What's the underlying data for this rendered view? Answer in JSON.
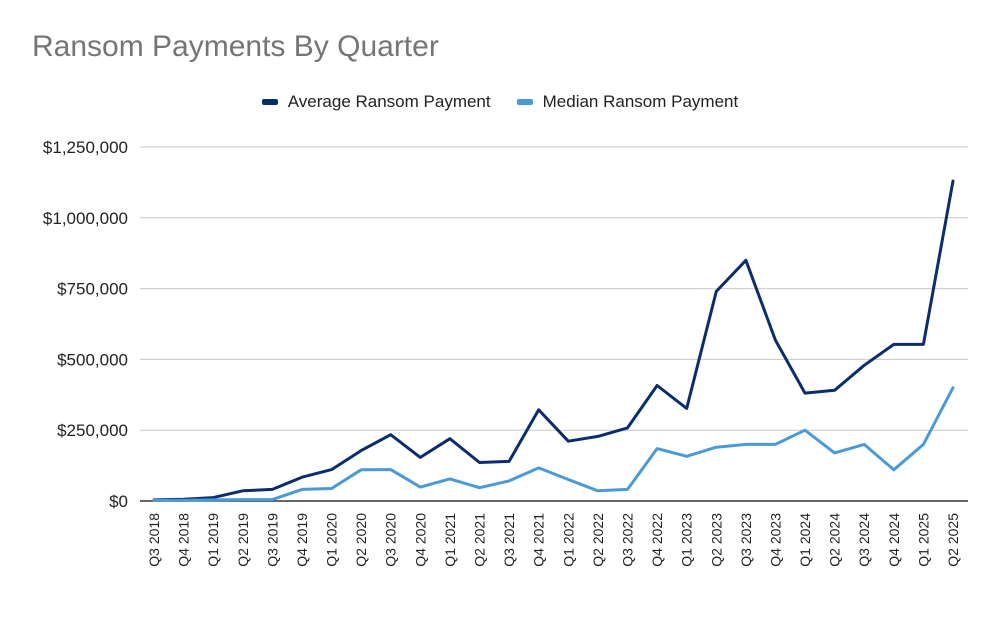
{
  "chart_data": {
    "type": "line",
    "title": "Ransom Payments By Quarter",
    "xlabel": "",
    "ylabel": "",
    "categories": [
      "Q3 2018",
      "Q4 2018",
      "Q1 2019",
      "Q2 2019",
      "Q3 2019",
      "Q4 2019",
      "Q1 2020",
      "Q2 2020",
      "Q3 2020",
      "Q4 2020",
      "Q1 2021",
      "Q2 2021",
      "Q3 2021",
      "Q4 2021",
      "Q1 2022",
      "Q2 2022",
      "Q3 2022",
      "Q4 2022",
      "Q1 2023",
      "Q2 2023",
      "Q3 2023",
      "Q4 2023",
      "Q1 2024",
      "Q2 2024",
      "Q3 2024",
      "Q4 2024",
      "Q1 2025",
      "Q2 2025"
    ],
    "series": [
      {
        "name": "Average Ransom Payment",
        "color": "#0b2d6e",
        "values": [
          4000,
          6000,
          12000,
          36000,
          41000,
          84000,
          111000,
          178000,
          234000,
          154000,
          220000,
          136000,
          140000,
          322000,
          211000,
          228000,
          258000,
          408000,
          327000,
          740000,
          850000,
          568000,
          381000,
          391000,
          479000,
          553000,
          553000,
          1130000
        ]
      },
      {
        "name": "Median Ransom Payment",
        "color": "#4a9ad8",
        "values": [
          2000,
          3000,
          4000,
          5000,
          5000,
          41000,
          44000,
          110000,
          111000,
          49000,
          78000,
          47000,
          71000,
          117000,
          76000,
          36000,
          41000,
          185000,
          158000,
          190000,
          200000,
          200000,
          250000,
          170000,
          200000,
          110000,
          200000,
          400000
        ]
      }
    ],
    "yticks": [
      "$0",
      "$250,000",
      "$500,000",
      "$750,000",
      "$1,000,000",
      "$1,250,000"
    ],
    "ylim": [
      0,
      1250000
    ],
    "grid": true,
    "legend_position": "top"
  }
}
